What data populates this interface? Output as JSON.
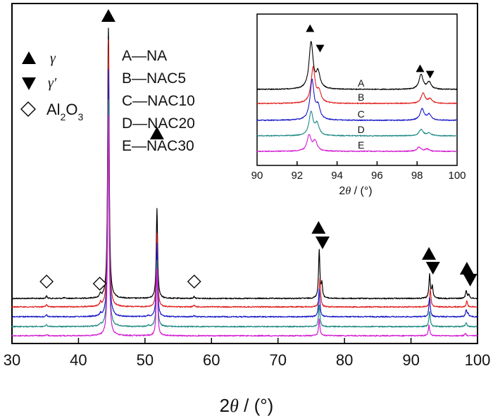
{
  "chart_data": [
    {
      "type": "line",
      "title": "",
      "xlabel_prefix": "2",
      "xlabel_symbol": "θ",
      "xlabel_suffix": " / (°)",
      "ylabel": "",
      "xlim": [
        30,
        100
      ],
      "x_ticks": [
        30,
        40,
        50,
        60,
        70,
        80,
        90,
        100
      ],
      "x_tick_labels": [
        "30",
        "40",
        "50",
        "60",
        "70",
        "80",
        "90",
        "100"
      ],
      "y_ticks_visible": false,
      "grid": false,
      "series": [
        {
          "name": "A",
          "sample": "NA",
          "color": "#000000",
          "offset": 4,
          "peaks": [
            [
              35.2,
              0.35
            ],
            [
              37.8,
              0.1
            ],
            [
              43.3,
              0.55
            ],
            [
              44.5,
              44
            ],
            [
              51.8,
              13.5
            ],
            [
              57.4,
              0.3
            ],
            [
              76.2,
              7.2
            ],
            [
              76.6,
              2
            ],
            [
              92.8,
              3.5
            ],
            [
              93.2,
              1.8
            ],
            [
              98.3,
              1.2
            ],
            [
              98.7,
              0.6
            ]
          ]
        },
        {
          "name": "B",
          "sample": "NAC5",
          "color": "#e0201e",
          "offset": 3,
          "peaks": [
            [
              35.2,
              0.35
            ],
            [
              43.3,
              0.5
            ],
            [
              44.5,
              40
            ],
            [
              51.8,
              11
            ],
            [
              57.4,
              0.25
            ],
            [
              76.3,
              4.2
            ],
            [
              92.9,
              2.6
            ],
            [
              98.4,
              0.9
            ]
          ]
        },
        {
          "name": "C",
          "sample": "NAC10",
          "color": "#1a1ac8",
          "offset": 2,
          "peaks": [
            [
              35.2,
              0.3
            ],
            [
              43.3,
              0.35
            ],
            [
              44.5,
              37
            ],
            [
              50.5,
              0.2
            ],
            [
              51.8,
              11
            ],
            [
              57.4,
              0.15
            ],
            [
              76.2,
              4.2
            ],
            [
              92.8,
              2.9
            ],
            [
              98.3,
              1.0
            ],
            [
              98.6,
              0.5
            ]
          ]
        },
        {
          "name": "D",
          "sample": "NAC20",
          "color": "#1f8a86",
          "offset": 1,
          "peaks": [
            [
              35.2,
              0.25
            ],
            [
              43.3,
              0.25
            ],
            [
              44.5,
              34
            ],
            [
              50.5,
              0.2
            ],
            [
              51.8,
              10
            ],
            [
              76.2,
              3.3
            ],
            [
              92.8,
              2.3
            ],
            [
              98.3,
              0.6
            ]
          ]
        },
        {
          "name": "E",
          "sample": "NAC30",
          "color": "#d21cd2",
          "offset": 0,
          "peaks": [
            [
              35.2,
              0.2
            ],
            [
              44.5,
              33
            ],
            [
              51.8,
              10
            ],
            [
              76.2,
              2.5
            ],
            [
              92.7,
              1.6
            ],
            [
              98.2,
              0.35
            ]
          ]
        }
      ],
      "phase_markers": [
        {
          "phase": "gamma",
          "shape": "triangle-up",
          "x": 44.5
        },
        {
          "phase": "gamma",
          "shape": "triangle-up",
          "x": 51.8
        },
        {
          "phase": "gamma",
          "shape": "triangle-up",
          "x": 76.1
        },
        {
          "phase": "gamma-prime",
          "shape": "triangle-down",
          "x": 76.7
        },
        {
          "phase": "gamma",
          "shape": "triangle-up",
          "x": 92.7
        },
        {
          "phase": "gamma-prime",
          "shape": "triangle-down",
          "x": 93.3
        },
        {
          "phase": "gamma",
          "shape": "triangle-up",
          "x": 98.4
        },
        {
          "phase": "gamma-prime",
          "shape": "triangle-down",
          "x": 98.9
        },
        {
          "phase": "Al2O3",
          "shape": "diamond-open",
          "x": 35.2
        },
        {
          "phase": "Al2O3",
          "shape": "diamond-open",
          "x": 43.2
        },
        {
          "phase": "Al2O3",
          "shape": "diamond-open",
          "x": 57.4
        }
      ],
      "legend_phases": {
        "placement": "top-left",
        "entries": [
          {
            "shape": "triangle-up",
            "symbol": "γ",
            "label": ""
          },
          {
            "shape": "triangle-down",
            "symbol": "γ′",
            "label": ""
          },
          {
            "shape": "diamond-open",
            "symbol": "",
            "label": "Al",
            "sub1": "2",
            "label2": "O",
            "sub2": "3"
          }
        ]
      },
      "legend_samples": {
        "placement": "top-center",
        "entries": [
          "A—NA",
          "B—NAC5",
          "C—NAC10",
          "D—NAC20",
          "E—NAC30"
        ]
      }
    },
    {
      "type": "line",
      "title": "inset",
      "xlabel_prefix": "2",
      "xlabel_symbol": "θ",
      "xlabel_suffix": " / (°)",
      "xlim": [
        90,
        100
      ],
      "x_ticks": [
        90,
        92,
        94,
        96,
        98,
        100
      ],
      "x_tick_labels": [
        "90",
        "92",
        "94",
        "96",
        "98",
        "100"
      ],
      "placement": "top-right",
      "series": [
        {
          "name": "A",
          "color": "#000000",
          "offset": 4,
          "peaks": [
            [
              92.7,
              6.6
            ],
            [
              93.05,
              2.2
            ],
            [
              98.2,
              2.1
            ],
            [
              98.6,
              1.0
            ]
          ]
        },
        {
          "name": "B",
          "color": "#e0201e",
          "offset": 3,
          "peaks": [
            [
              92.8,
              5.0
            ],
            [
              93.1,
              1.5
            ],
            [
              98.3,
              1.4
            ],
            [
              98.65,
              0.6
            ]
          ]
        },
        {
          "name": "C",
          "color": "#1a1ac8",
          "offset": 2,
          "peaks": [
            [
              92.75,
              5.6
            ],
            [
              93.05,
              1.8
            ],
            [
              98.25,
              1.6
            ],
            [
              98.6,
              0.8
            ]
          ]
        },
        {
          "name": "D",
          "color": "#1f8a86",
          "offset": 1,
          "peaks": [
            [
              92.7,
              3.3
            ],
            [
              93.0,
              1.6
            ],
            [
              98.2,
              0.9
            ],
            [
              98.6,
              0.4
            ]
          ]
        },
        {
          "name": "E",
          "color": "#d21cd2",
          "offset": 0,
          "peaks": [
            [
              92.6,
              2.2
            ],
            [
              92.9,
              1.4
            ],
            [
              98.1,
              0.6
            ],
            [
              98.5,
              0.3
            ]
          ]
        }
      ],
      "curve_labels": [
        {
          "text": "A",
          "x": 95.2
        },
        {
          "text": "B",
          "x": 95.2
        },
        {
          "text": "C",
          "x": 95.2
        },
        {
          "text": "D",
          "x": 95.2
        },
        {
          "text": "E",
          "x": 95.2
        }
      ],
      "phase_markers": [
        {
          "phase": "gamma",
          "shape": "triangle-up",
          "x": 92.65
        },
        {
          "phase": "gamma-prime",
          "shape": "triangle-down",
          "x": 93.15
        },
        {
          "phase": "gamma",
          "shape": "triangle-up",
          "x": 98.15
        },
        {
          "phase": "gamma-prime",
          "shape": "triangle-down",
          "x": 98.65
        }
      ]
    }
  ]
}
